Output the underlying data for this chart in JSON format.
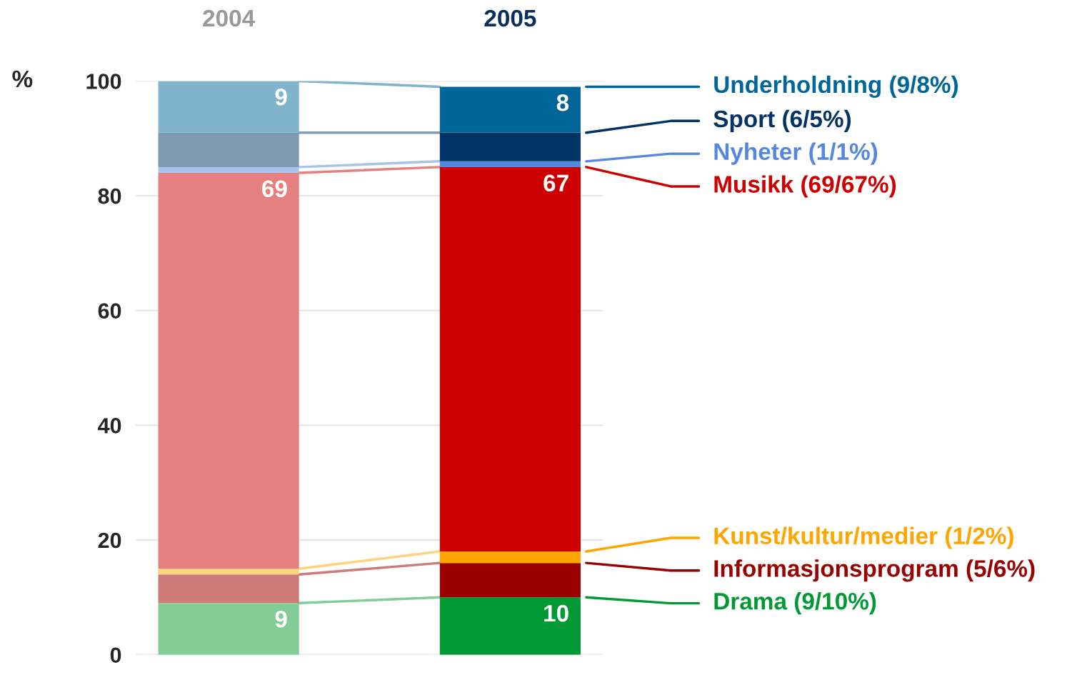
{
  "chart_data": {
    "type": "bar",
    "stacked": true,
    "categories": [
      "2004",
      "2005"
    ],
    "ylabel": "%",
    "ylim": [
      0,
      100
    ],
    "yticks": [
      0,
      20,
      40,
      60,
      80,
      100
    ],
    "grid": "y",
    "legend": "right",
    "series": [
      {
        "name": "Drama (9/10%)",
        "colors": [
          "#82cc98",
          "#009933"
        ],
        "values": [
          9,
          10
        ],
        "value_labels": [
          "9",
          "10"
        ]
      },
      {
        "name": "Informasjonsprogram (5/6%)",
        "colors": [
          "#cc7a7a",
          "#990000"
        ],
        "values": [
          5,
          6
        ],
        "value_labels": [
          null,
          null
        ]
      },
      {
        "name": "Kunst/kultur/medier (1/2%)",
        "colors": [
          "#ffd280",
          "#ffa500"
        ],
        "values": [
          1,
          2
        ],
        "value_labels": [
          null,
          null
        ]
      },
      {
        "name": "Musikk (69/67%)",
        "colors": [
          "#e58080",
          "#cc0000"
        ],
        "values": [
          69,
          67
        ],
        "value_labels": [
          "69",
          "67"
        ]
      },
      {
        "name": "Nyheter (1/1%)",
        "colors": [
          "#a8c4ec",
          "#5588dd"
        ],
        "values": [
          1,
          1
        ],
        "value_labels": [
          null,
          null
        ]
      },
      {
        "name": "Sport (6/5%)",
        "colors": [
          "#7f9bb3",
          "#003366"
        ],
        "values": [
          6,
          5
        ],
        "value_labels": [
          null,
          null
        ]
      },
      {
        "name": "Underholdning (9/8%)",
        "colors": [
          "#80b3cc",
          "#006699"
        ],
        "values": [
          9,
          8
        ],
        "value_labels": [
          "9",
          "8"
        ]
      }
    ]
  }
}
